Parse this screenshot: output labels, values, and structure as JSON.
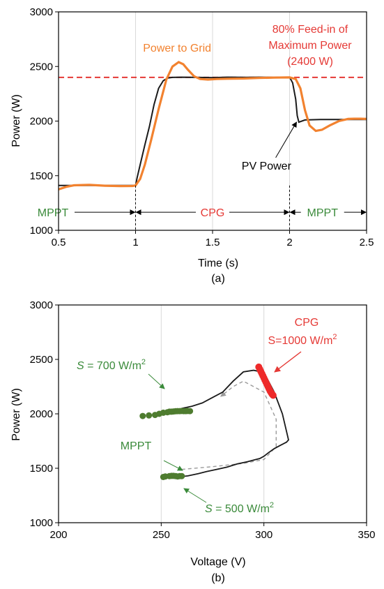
{
  "colors": {
    "grid_power": "#F2822F",
    "pv_power": "#1A1A1A",
    "limit_line": "#E53935",
    "cpg_text": "#E53935",
    "mppt_green": "#3A8A3A",
    "green_markers": "#4E7C2F",
    "red_markers": "#EE2A2A",
    "trajectory_dashed": "#9A9A9A",
    "axis": "#000000",
    "grid": "#D9D9D9"
  },
  "chart_data": [
    {
      "type": "line",
      "caption": "(a)",
      "xlabel": "Time (s)",
      "ylabel": "Power (W)",
      "xlim": [
        0.5,
        2.5
      ],
      "ylim": [
        1000,
        3000
      ],
      "xticks": [
        "0.5",
        "1",
        "1.5",
        "2",
        "2.5"
      ],
      "yticks": [
        "1000",
        "1500",
        "2000",
        "2500",
        "3000"
      ],
      "grid": "vertical",
      "limit_line": {
        "y": 2400,
        "label_lines": [
          "80% Feed-in of",
          "Maximum Power",
          "(2400 W)"
        ]
      },
      "series": [
        {
          "name": "Power to Grid",
          "x": [
            0.5,
            0.55,
            0.6,
            0.7,
            0.8,
            0.9,
            0.98,
            1.0,
            1.03,
            1.06,
            1.1,
            1.15,
            1.2,
            1.24,
            1.28,
            1.31,
            1.34,
            1.38,
            1.42,
            1.47,
            1.53,
            1.6,
            1.7,
            1.8,
            1.9,
            2.0,
            2.04,
            2.07,
            2.1,
            2.13,
            2.17,
            2.21,
            2.26,
            2.32,
            2.38,
            2.42,
            2.46,
            2.5
          ],
          "y": [
            1375,
            1398,
            1412,
            1416,
            1408,
            1405,
            1406,
            1410,
            1470,
            1600,
            1820,
            2110,
            2380,
            2500,
            2540,
            2520,
            2470,
            2410,
            2385,
            2380,
            2385,
            2388,
            2390,
            2395,
            2398,
            2400,
            2385,
            2300,
            2100,
            1960,
            1910,
            1920,
            1960,
            2000,
            2020,
            2022,
            2022,
            2020
          ]
        },
        {
          "name": "PV Power",
          "x": [
            0.5,
            0.6,
            0.7,
            0.8,
            0.9,
            1.0,
            1.01,
            1.03,
            1.06,
            1.09,
            1.12,
            1.15,
            1.18,
            1.21,
            1.24,
            1.3,
            1.4,
            1.5,
            1.6,
            1.7,
            1.8,
            1.9,
            2.0,
            2.02,
            2.04,
            2.05,
            2.06,
            2.1,
            2.2,
            2.3,
            2.4,
            2.5
          ],
          "y": [
            1410,
            1410,
            1410,
            1410,
            1410,
            1410,
            1480,
            1600,
            1780,
            1950,
            2150,
            2300,
            2370,
            2395,
            2400,
            2402,
            2400,
            2398,
            2402,
            2400,
            2402,
            2400,
            2402,
            2350,
            2200,
            2050,
            1990,
            2010,
            2015,
            2015,
            2015,
            2015
          ]
        }
      ],
      "annotations": [
        {
          "text": "Power to Grid",
          "x": 1.27,
          "y": 2635
        },
        {
          "text": "PV Power",
          "x": 1.85,
          "y": 1555
        }
      ],
      "regions": [
        {
          "label": "MPPT",
          "from": 0.5,
          "to": 1.0
        },
        {
          "label": "CPG",
          "from": 1.0,
          "to": 2.0
        },
        {
          "label": "MPPT",
          "from": 2.0,
          "to": 2.5
        }
      ],
      "region_y": 1165
    },
    {
      "type": "scatter",
      "caption": "(b)",
      "xlabel": "Voltage (V)",
      "ylabel": "Power (W)",
      "xlim": [
        200,
        350
      ],
      "ylim": [
        1000,
        3000
      ],
      "xticks": [
        "200",
        "250",
        "300",
        "350"
      ],
      "yticks": [
        "1000",
        "1500",
        "2000",
        "2500",
        "3000"
      ],
      "grid": "vertical",
      "trajectory": {
        "x": [
          258,
          263,
          268,
          272,
          277,
          282,
          287,
          292,
          296,
          298,
          299,
          300,
          302,
          305,
          308,
          311,
          312,
          309,
          305,
          300,
          295,
          290,
          285,
          280,
          275,
          270,
          265,
          260,
          258
        ],
        "y": [
          1420,
          1430,
          1450,
          1470,
          1490,
          1510,
          1540,
          1560,
          1580,
          1590,
          1600,
          1610,
          1640,
          1680,
          1710,
          1740,
          1760,
          2000,
          2200,
          2380,
          2400,
          2385,
          2300,
          2200,
          2150,
          2100,
          2070,
          2050,
          2030
        ]
      },
      "dashed_path": {
        "x": [
          260,
          275,
          290,
          300,
          306,
          306,
          300,
          290,
          285,
          279
        ],
        "y": [
          1490,
          1515,
          1545,
          1580,
          1700,
          1950,
          2200,
          2300,
          2250,
          2160
        ]
      },
      "series": [
        {
          "name": "MPPT (S = 700 W/m2)",
          "x": [
            241,
            244,
            247,
            249,
            251,
            253,
            254,
            255,
            256,
            257,
            258,
            259,
            260,
            261,
            262,
            263,
            264
          ],
          "y": [
            1980,
            1985,
            1990,
            2000,
            2010,
            2015,
            2020,
            2020,
            2022,
            2024,
            2025,
            2025,
            2026,
            2025,
            2025,
            2026,
            2025
          ]
        },
        {
          "name": "MPPT (S = 500 W/m2)",
          "x": [
            251,
            252,
            254,
            255,
            256,
            257,
            258,
            259,
            260
          ],
          "y": [
            1420,
            1425,
            1428,
            1430,
            1430,
            1428,
            1425,
            1428,
            1428
          ]
        },
        {
          "name": "CPG (S=1000 W/m2)",
          "x": [
            297.5,
            298,
            298.5,
            299,
            299.5,
            300,
            300.5,
            301,
            301.5,
            302,
            302.5,
            303,
            303.5,
            304,
            304.5
          ],
          "y": [
            2430,
            2410,
            2390,
            2370,
            2350,
            2330,
            2310,
            2290,
            2270,
            2250,
            2230,
            2210,
            2195,
            2180,
            2170
          ]
        }
      ],
      "labels": {
        "cpg_title": "CPG",
        "cpg_irr": "S=1000 W/m",
        "s700_prefix": "S",
        "s700_rest": " = 700 W/m",
        "mppt": "MPPT",
        "s500_prefix": "S",
        "s500_rest": " = 500 W/m",
        "superscript": "2"
      }
    }
  ]
}
